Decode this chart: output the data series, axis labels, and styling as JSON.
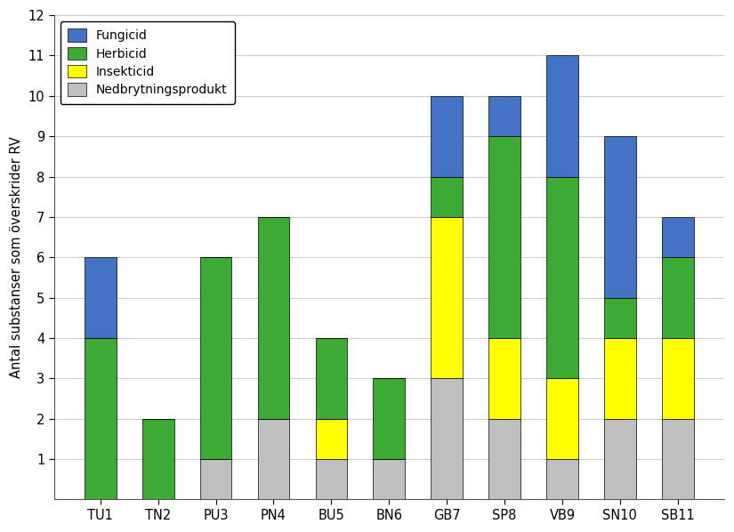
{
  "categories": [
    "TU1",
    "TN2",
    "PU3",
    "PN4",
    "BU5",
    "BN6",
    "GB7",
    "SP8",
    "VB9",
    "SN10",
    "SB11"
  ],
  "fungicid": [
    2,
    0,
    0,
    0,
    0,
    0,
    2,
    1,
    3,
    4,
    1
  ],
  "herbicid": [
    4,
    2,
    5,
    5,
    2,
    2,
    1,
    5,
    5,
    1,
    2
  ],
  "insekticid": [
    0,
    0,
    0,
    0,
    1,
    0,
    4,
    2,
    2,
    2,
    2
  ],
  "nedbrytningsprodukt": [
    0,
    0,
    1,
    2,
    1,
    1,
    3,
    2,
    1,
    2,
    2
  ],
  "color_fungicid": "#4472C4",
  "color_herbicid": "#3EAA36",
  "color_insekticid": "#FFFF00",
  "color_nedbrytning": "#BFBFBF",
  "ylabel": "Antal substanser som överskrider RV",
  "ylim": [
    0,
    12
  ],
  "yticks": [
    1,
    2,
    3,
    4,
    5,
    6,
    7,
    8,
    9,
    10,
    11,
    12
  ],
  "legend_labels": [
    "Fungicid",
    "Herbicid",
    "Insekticid",
    "Nedbrytningsprodukt"
  ],
  "bar_width": 0.55,
  "background_color": "#FFFFFF",
  "grid_color": "#CCCCCC",
  "spine_color": "#555555",
  "figsize": [
    8.25,
    5.98
  ],
  "dpi": 100
}
